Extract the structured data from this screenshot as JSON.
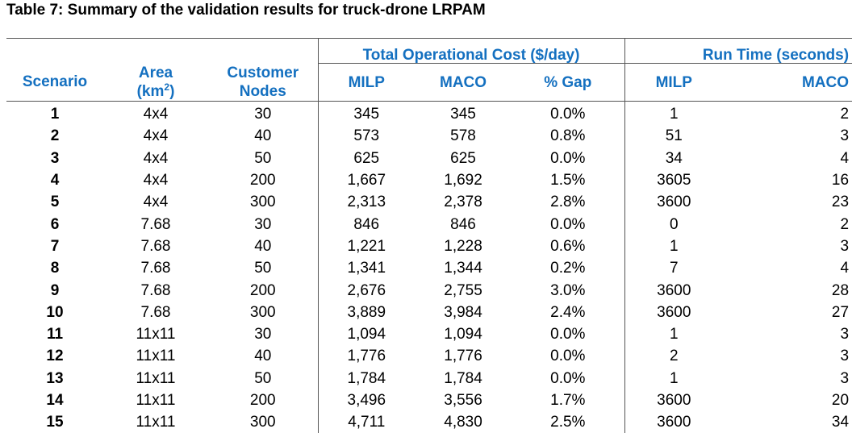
{
  "caption": "Table 7: Summary of the validation results for truck-drone LRPAM",
  "headers": {
    "group_cost": "Total Operational Cost ($/day)",
    "group_time": "Run Time (seconds)",
    "scenario": "Scenario",
    "area_line1": "Area",
    "area_line2_pre": "(km",
    "area_sup": "2",
    "area_line2_post": ")",
    "nodes_line1": "Customer",
    "nodes_line2": "Nodes",
    "milp": "MILP",
    "maco": "MACO",
    "gap": "% Gap",
    "rt_milp": "MILP",
    "rt_maco": "MACO"
  },
  "rows": [
    {
      "scenario": "1",
      "area": "4x4",
      "nodes": "30",
      "milp": "345",
      "maco": "345",
      "gap": "0.0%",
      "rt_milp": "1",
      "rt_maco": "2"
    },
    {
      "scenario": "2",
      "area": "4x4",
      "nodes": "40",
      "milp": "573",
      "maco": "578",
      "gap": "0.8%",
      "rt_milp": "51",
      "rt_maco": "3"
    },
    {
      "scenario": "3",
      "area": "4x4",
      "nodes": "50",
      "milp": "625",
      "maco": "625",
      "gap": "0.0%",
      "rt_milp": "34",
      "rt_maco": "4"
    },
    {
      "scenario": "4",
      "area": "4x4",
      "nodes": "200",
      "milp": "1,667",
      "maco": "1,692",
      "gap": "1.5%",
      "rt_milp": "3605",
      "rt_maco": "16"
    },
    {
      "scenario": "5",
      "area": "4x4",
      "nodes": "300",
      "milp": "2,313",
      "maco": "2,378",
      "gap": "2.8%",
      "rt_milp": "3600",
      "rt_maco": "23"
    },
    {
      "scenario": "6",
      "area": "7.68",
      "nodes": "30",
      "milp": "846",
      "maco": "846",
      "gap": "0.0%",
      "rt_milp": "0",
      "rt_maco": "2"
    },
    {
      "scenario": "7",
      "area": "7.68",
      "nodes": "40",
      "milp": "1,221",
      "maco": "1,228",
      "gap": "0.6%",
      "rt_milp": "1",
      "rt_maco": "3"
    },
    {
      "scenario": "8",
      "area": "7.68",
      "nodes": "50",
      "milp": "1,341",
      "maco": "1,344",
      "gap": "0.2%",
      "rt_milp": "7",
      "rt_maco": "4"
    },
    {
      "scenario": "9",
      "area": "7.68",
      "nodes": "200",
      "milp": "2,676",
      "maco": "2,755",
      "gap": "3.0%",
      "rt_milp": "3600",
      "rt_maco": "28"
    },
    {
      "scenario": "10",
      "area": "7.68",
      "nodes": "300",
      "milp": "3,889",
      "maco": "3,984",
      "gap": "2.4%",
      "rt_milp": "3600",
      "rt_maco": "27"
    },
    {
      "scenario": "11",
      "area": "11x11",
      "nodes": "30",
      "milp": "1,094",
      "maco": "1,094",
      "gap": "0.0%",
      "rt_milp": "1",
      "rt_maco": "3"
    },
    {
      "scenario": "12",
      "area": "11x11",
      "nodes": "40",
      "milp": "1,776",
      "maco": "1,776",
      "gap": "0.0%",
      "rt_milp": "2",
      "rt_maco": "3"
    },
    {
      "scenario": "13",
      "area": "11x11",
      "nodes": "50",
      "milp": "1,784",
      "maco": "1,784",
      "gap": "0.0%",
      "rt_milp": "1",
      "rt_maco": "3"
    },
    {
      "scenario": "14",
      "area": "11x11",
      "nodes": "200",
      "milp": "3,496",
      "maco": "3,556",
      "gap": "1.7%",
      "rt_milp": "3600",
      "rt_maco": "20"
    },
    {
      "scenario": "15",
      "area": "11x11",
      "nodes": "300",
      "milp": "4,711",
      "maco": "4,830",
      "gap": "2.5%",
      "rt_milp": "3600",
      "rt_maco": "34"
    }
  ],
  "colors": {
    "header_text": "#1470c0",
    "rule": "#555555"
  }
}
